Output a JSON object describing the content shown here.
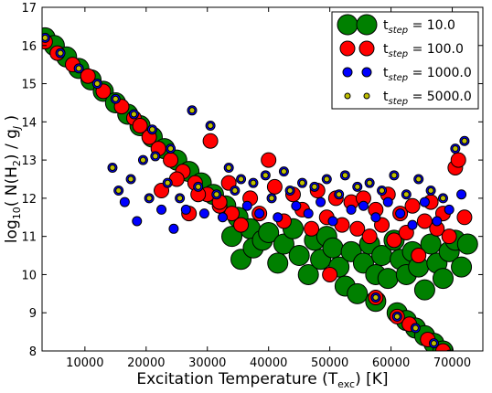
{
  "chart_data": {
    "type": "scatter",
    "xlabel": "Excitation Temperature (T",
    "xlabel_sub": "exc",
    "xlabel_tail": ") [K]",
    "ylabel_parts": [
      "log",
      "10",
      "( N(H",
      "2",
      ") / g",
      "J",
      " )"
    ],
    "xlim": [
      3000,
      75000
    ],
    "ylim": [
      8,
      17
    ],
    "xticks": [
      10000,
      20000,
      30000,
      40000,
      50000,
      60000,
      70000
    ],
    "yticks": [
      8,
      9,
      10,
      11,
      12,
      13,
      14,
      15,
      16,
      17
    ],
    "xtick_labels": [
      "10000",
      "20000",
      "30000",
      "40000",
      "50000",
      "60000",
      "70000"
    ],
    "ytick_labels": [
      "8",
      "9",
      "10",
      "11",
      "12",
      "13",
      "14",
      "15",
      "16",
      "17"
    ],
    "legend_position": "top-right",
    "series": [
      {
        "name": "t",
        "sub": "step",
        "value_text": " = 10.0",
        "color": "#008000",
        "edge": "#000000",
        "size": "large",
        "points": [
          [
            3500,
            16.2
          ],
          [
            5000,
            16.0
          ],
          [
            7000,
            15.7
          ],
          [
            9000,
            15.4
          ],
          [
            11000,
            15.1
          ],
          [
            13000,
            14.8
          ],
          [
            15000,
            14.5
          ],
          [
            17000,
            14.2
          ],
          [
            19000,
            13.9
          ],
          [
            21000,
            13.6
          ],
          [
            23000,
            13.3
          ],
          [
            25000,
            13.0
          ],
          [
            27000,
            12.7
          ],
          [
            29000,
            12.4
          ],
          [
            31000,
            12.1
          ],
          [
            33000,
            11.8
          ],
          [
            35000,
            11.5
          ],
          [
            37000,
            11.2
          ],
          [
            34000,
            11.0
          ],
          [
            35500,
            10.4
          ],
          [
            37500,
            10.7
          ],
          [
            39000,
            10.9
          ],
          [
            40000,
            11.1
          ],
          [
            41500,
            10.3
          ],
          [
            42500,
            10.8
          ],
          [
            44000,
            11.2
          ],
          [
            45000,
            10.5
          ],
          [
            46500,
            10.0
          ],
          [
            47500,
            10.9
          ],
          [
            48500,
            10.4
          ],
          [
            49500,
            11.0
          ],
          [
            50500,
            10.7
          ],
          [
            51500,
            10.2
          ],
          [
            52500,
            9.7
          ],
          [
            53500,
            10.6
          ],
          [
            54500,
            9.5
          ],
          [
            55500,
            10.3
          ],
          [
            56500,
            10.8
          ],
          [
            57500,
            10.0
          ],
          [
            58500,
            10.5
          ],
          [
            59500,
            9.9
          ],
          [
            60500,
            10.9
          ],
          [
            61500,
            10.4
          ],
          [
            62500,
            10.0
          ],
          [
            63500,
            10.6
          ],
          [
            64500,
            10.2
          ],
          [
            65500,
            9.6
          ],
          [
            66500,
            10.8
          ],
          [
            67500,
            10.3
          ],
          [
            68500,
            9.9
          ],
          [
            69500,
            10.6
          ],
          [
            70500,
            10.9
          ],
          [
            71500,
            10.2
          ],
          [
            72500,
            10.8
          ],
          [
            57500,
            9.3
          ],
          [
            61000,
            9.0
          ],
          [
            62500,
            8.8
          ],
          [
            64000,
            8.6
          ],
          [
            65500,
            8.4
          ],
          [
            67000,
            8.2
          ],
          [
            68500,
            8.0
          ]
        ]
      },
      {
        "name": "t",
        "sub": "step",
        "value_text": " = 100.0",
        "color": "#ff0000",
        "edge": "#000000",
        "size": "medium",
        "points": [
          [
            3500,
            16.1
          ],
          [
            5500,
            15.8
          ],
          [
            8000,
            15.5
          ],
          [
            10500,
            15.2
          ],
          [
            13000,
            14.8
          ],
          [
            16000,
            14.4
          ],
          [
            18000,
            14.1
          ],
          [
            19000,
            13.9
          ],
          [
            20500,
            13.6
          ],
          [
            22000,
            13.3
          ],
          [
            24000,
            13.0
          ],
          [
            26000,
            12.7
          ],
          [
            28000,
            12.4
          ],
          [
            30000,
            12.1
          ],
          [
            32000,
            11.8
          ],
          [
            34000,
            11.6
          ],
          [
            22500,
            12.2
          ],
          [
            25000,
            12.5
          ],
          [
            27000,
            11.6
          ],
          [
            28500,
            12.1
          ],
          [
            30500,
            13.5
          ],
          [
            32000,
            11.9
          ],
          [
            33500,
            12.4
          ],
          [
            35500,
            11.3
          ],
          [
            37000,
            12.0
          ],
          [
            38500,
            11.6
          ],
          [
            40000,
            13.0
          ],
          [
            41000,
            12.3
          ],
          [
            42500,
            11.4
          ],
          [
            44000,
            12.1
          ],
          [
            45500,
            11.7
          ],
          [
            47000,
            11.2
          ],
          [
            48000,
            12.2
          ],
          [
            49500,
            11.5
          ],
          [
            50000,
            10.0
          ],
          [
            51000,
            12.0
          ],
          [
            52000,
            11.3
          ],
          [
            53500,
            11.9
          ],
          [
            54500,
            11.2
          ],
          [
            55500,
            12.0
          ],
          [
            56500,
            11.0
          ],
          [
            57500,
            11.7
          ],
          [
            58500,
            11.3
          ],
          [
            59500,
            12.1
          ],
          [
            60500,
            10.9
          ],
          [
            61500,
            11.6
          ],
          [
            62500,
            11.1
          ],
          [
            63500,
            11.8
          ],
          [
            64500,
            10.5
          ],
          [
            65500,
            11.4
          ],
          [
            66500,
            11.9
          ],
          [
            67500,
            11.2
          ],
          [
            68500,
            11.6
          ],
          [
            69500,
            11.0
          ],
          [
            70500,
            12.8
          ],
          [
            71000,
            13.0
          ],
          [
            72000,
            11.5
          ],
          [
            57500,
            9.4
          ],
          [
            61000,
            8.9
          ],
          [
            63000,
            8.7
          ],
          [
            66000,
            8.3
          ],
          [
            68500,
            8.0
          ]
        ]
      },
      {
        "name": "t",
        "sub": "step",
        "value_text": " = 1000.0",
        "color": "#0000ff",
        "edge": "#000000",
        "size": "small",
        "points": [
          [
            3500,
            16.2
          ],
          [
            6000,
            15.8
          ],
          [
            9000,
            15.4
          ],
          [
            12000,
            15.0
          ],
          [
            15000,
            14.6
          ],
          [
            18000,
            14.2
          ],
          [
            21000,
            13.8
          ],
          [
            24000,
            13.3
          ],
          [
            14500,
            12.8
          ],
          [
            15500,
            12.2
          ],
          [
            16500,
            11.9
          ],
          [
            17500,
            12.5
          ],
          [
            18500,
            11.4
          ],
          [
            19500,
            13.0
          ],
          [
            20500,
            12.0
          ],
          [
            21500,
            13.1
          ],
          [
            22500,
            11.7
          ],
          [
            23500,
            12.4
          ],
          [
            24500,
            11.2
          ],
          [
            25500,
            12.0
          ],
          [
            26500,
            11.7
          ],
          [
            27500,
            14.3
          ],
          [
            28500,
            12.3
          ],
          [
            29500,
            11.6
          ],
          [
            30500,
            13.9
          ],
          [
            31500,
            12.1
          ],
          [
            32500,
            11.5
          ],
          [
            33500,
            12.8
          ],
          [
            34500,
            12.2
          ],
          [
            35500,
            12.5
          ],
          [
            36500,
            11.8
          ],
          [
            37500,
            12.4
          ],
          [
            38500,
            11.6
          ],
          [
            39500,
            12.6
          ],
          [
            40500,
            12.0
          ],
          [
            41500,
            11.5
          ],
          [
            42500,
            12.7
          ],
          [
            43500,
            12.2
          ],
          [
            44500,
            11.8
          ],
          [
            45500,
            12.4
          ],
          [
            46500,
            11.6
          ],
          [
            47500,
            12.3
          ],
          [
            48500,
            11.9
          ],
          [
            49500,
            12.5
          ],
          [
            50500,
            11.4
          ],
          [
            51500,
            12.1
          ],
          [
            52500,
            12.6
          ],
          [
            53500,
            11.7
          ],
          [
            54500,
            12.3
          ],
          [
            55500,
            11.8
          ],
          [
            56500,
            12.4
          ],
          [
            57500,
            11.5
          ],
          [
            58500,
            12.2
          ],
          [
            59500,
            11.9
          ],
          [
            60500,
            12.6
          ],
          [
            61500,
            11.6
          ],
          [
            62500,
            12.1
          ],
          [
            63500,
            11.3
          ],
          [
            64500,
            12.5
          ],
          [
            65500,
            11.9
          ],
          [
            66500,
            12.2
          ],
          [
            67500,
            11.4
          ],
          [
            68500,
            12.0
          ],
          [
            69500,
            11.7
          ],
          [
            70500,
            13.3
          ],
          [
            71500,
            12.1
          ],
          [
            72000,
            13.5
          ],
          [
            57500,
            9.4
          ],
          [
            61000,
            8.9
          ],
          [
            64000,
            8.6
          ],
          [
            67000,
            8.2
          ],
          [
            69500,
            7.9
          ]
        ]
      },
      {
        "name": "t",
        "sub": "step",
        "value_text": " = 5000.0",
        "color": "#bfbf00",
        "edge": "#000000",
        "size": "tiny",
        "points": [
          [
            3500,
            16.2
          ],
          [
            6000,
            15.8
          ],
          [
            9000,
            15.4
          ],
          [
            12000,
            15.0
          ],
          [
            15000,
            14.6
          ],
          [
            18000,
            14.2
          ],
          [
            21000,
            13.8
          ],
          [
            24000,
            13.3
          ],
          [
            14500,
            12.8
          ],
          [
            15500,
            12.2
          ],
          [
            17500,
            12.5
          ],
          [
            19500,
            13.0
          ],
          [
            20500,
            12.0
          ],
          [
            21500,
            13.1
          ],
          [
            23500,
            12.4
          ],
          [
            25500,
            12.0
          ],
          [
            27500,
            14.3
          ],
          [
            28500,
            12.3
          ],
          [
            30500,
            13.9
          ],
          [
            31500,
            12.1
          ],
          [
            33500,
            12.8
          ],
          [
            34500,
            12.2
          ],
          [
            35500,
            12.5
          ],
          [
            37500,
            12.4
          ],
          [
            39500,
            12.6
          ],
          [
            40500,
            12.0
          ],
          [
            42500,
            12.7
          ],
          [
            43500,
            12.2
          ],
          [
            45500,
            12.4
          ],
          [
            47500,
            12.3
          ],
          [
            49500,
            12.5
          ],
          [
            51500,
            12.1
          ],
          [
            52500,
            12.6
          ],
          [
            54500,
            12.3
          ],
          [
            56500,
            12.4
          ],
          [
            58500,
            12.2
          ],
          [
            60500,
            12.6
          ],
          [
            62500,
            12.1
          ],
          [
            64500,
            12.5
          ],
          [
            66500,
            12.2
          ],
          [
            68500,
            12.0
          ],
          [
            70500,
            13.3
          ],
          [
            72000,
            13.5
          ],
          [
            57500,
            9.4
          ],
          [
            61000,
            8.9
          ],
          [
            64000,
            8.6
          ],
          [
            67000,
            8.2
          ],
          [
            69500,
            7.9
          ]
        ]
      }
    ]
  }
}
